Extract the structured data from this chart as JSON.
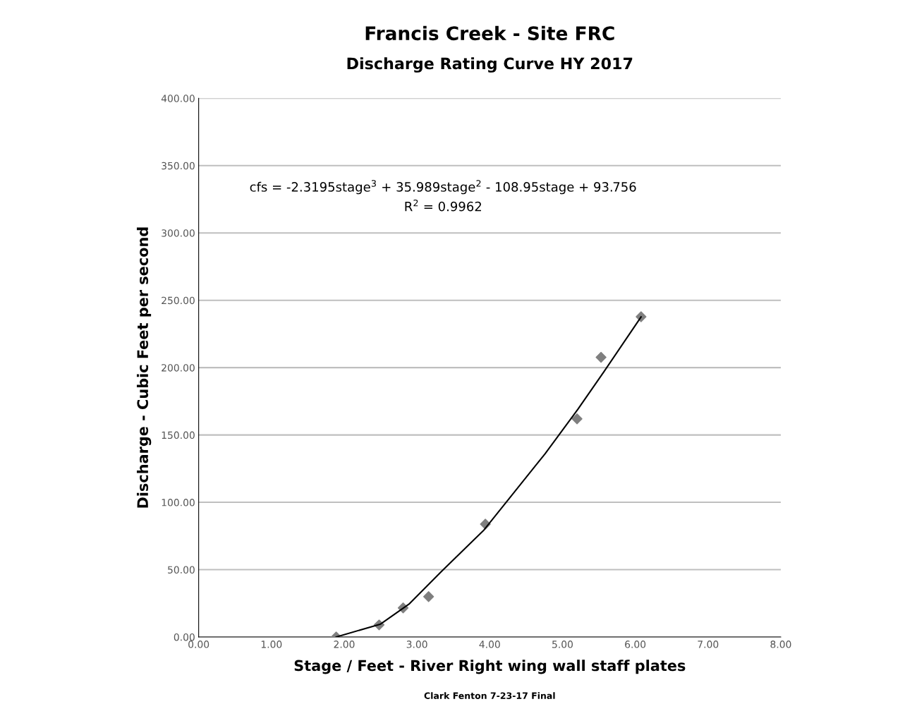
{
  "chart_data": {
    "type": "scatter",
    "title": "Francis Creek - Site FRC",
    "subtitle": "Discharge Rating Curve HY 2017",
    "xlabel": "Stage / Feet - River Right wing wall staff plates",
    "ylabel": "Discharge - Cubic Feet per second",
    "series": [
      {
        "color": "#7f7f7f",
        "marker": "diamond",
        "x": [
          1.89,
          2.48,
          2.81,
          3.16,
          3.94,
          5.2,
          5.53,
          6.08
        ],
        "values": [
          0,
          9,
          21.6,
          30,
          83.8,
          162,
          207.7,
          237.8
        ]
      },
      {
        "type": "line",
        "color": "#000000",
        "marker": "none",
        "x": [
          1.89,
          2.5,
          2.89,
          3.34,
          3.92,
          4.27,
          4.76,
          5.21,
          5.57,
          6.08
        ],
        "values": [
          0,
          9.6,
          24.4,
          48.8,
          79.4,
          103,
          136,
          169,
          197,
          237.7
        ]
      }
    ],
    "xlim": [
      0,
      8
    ],
    "xticks": [
      {
        "value": 0,
        "label": "0.00"
      },
      {
        "value": 1,
        "label": "1.00"
      },
      {
        "value": 2,
        "label": "2.00"
      },
      {
        "value": 3,
        "label": "3.00"
      },
      {
        "value": 4,
        "label": "4.00"
      },
      {
        "value": 5,
        "label": "5.00"
      },
      {
        "value": 6,
        "label": "6.00"
      },
      {
        "value": 7,
        "label": "7.00"
      },
      {
        "value": 8,
        "label": "8.00"
      }
    ],
    "ylim": [
      0,
      400
    ],
    "yticks": [
      {
        "value": 0,
        "label": "0.00"
      },
      {
        "value": 50,
        "label": "50.00"
      },
      {
        "value": 100,
        "label": "100.00"
      },
      {
        "value": 150,
        "label": "150.00"
      },
      {
        "value": 200,
        "label": "200.00"
      },
      {
        "value": 250,
        "label": "250.00"
      },
      {
        "value": 300,
        "label": "300.00"
      },
      {
        "value": 350,
        "label": "350.00"
      },
      {
        "value": 400,
        "label": "400.00"
      }
    ],
    "grid": "y",
    "legend": false,
    "annotations": [
      "cfs = -2.3195stage$^{3}$ + 35.989stage$^{2}$ - 108.95stage + 93.756",
      "R$^{2}$ = 0.9962",
      "Clark Fenton 7-23-17 Final"
    ]
  }
}
